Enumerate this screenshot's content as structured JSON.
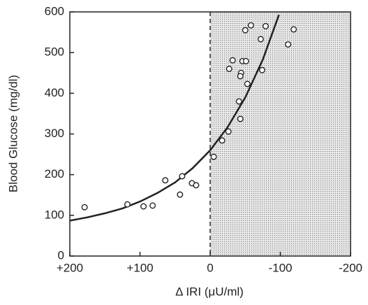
{
  "chart_data": {
    "type": "scatter",
    "xlabel": "Δ IRI (μU/ml)",
    "ylabel": "Blood Glucose (mg/dl)",
    "xlim": [
      200,
      -200
    ],
    "xticks": [
      {
        "value": 200,
        "label": "+200"
      },
      {
        "value": 100,
        "label": "+100"
      },
      0,
      -100,
      -200
    ],
    "ylim": [
      0,
      600
    ],
    "yticks": [
      0,
      100,
      200,
      300,
      400,
      500,
      600
    ],
    "shaded_region": [
      0,
      -200
    ],
    "points": {
      "color": "#222",
      "x": [
        179,
        118,
        95,
        82,
        64,
        43,
        40,
        26,
        20,
        -5,
        -17,
        -26,
        -43,
        -41,
        -53,
        -44,
        -43,
        -46,
        -51,
        -27,
        -32,
        -74,
        -72,
        -50,
        -58,
        -79,
        -111,
        -119
      ],
      "y": [
        120,
        127,
        122,
        124,
        186,
        151,
        196,
        179,
        174,
        244,
        284,
        306,
        337,
        380,
        423,
        450,
        442,
        479,
        479,
        460,
        481,
        457,
        533,
        555,
        567,
        565,
        520,
        557
      ]
    },
    "curve": {
      "color": "#222",
      "x": [
        200,
        175,
        150,
        125,
        100,
        75,
        50,
        25,
        0,
        -25,
        -50,
        -75,
        -98
      ],
      "y": [
        87,
        95,
        105,
        117,
        134,
        155,
        181,
        216,
        260,
        317,
        390,
        483,
        593
      ]
    }
  }
}
